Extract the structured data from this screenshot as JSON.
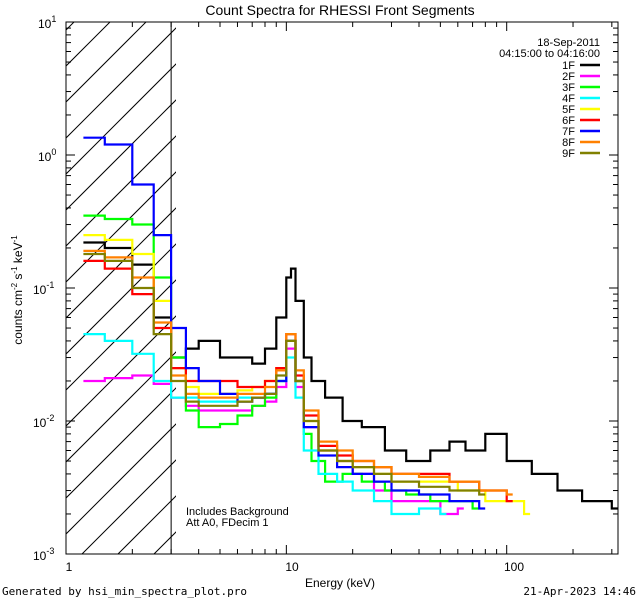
{
  "chart_data": {
    "type": "line",
    "title": "Count Spectra for RHESSI Front Segments",
    "xlabel": "Energy (keV)",
    "ylabel": "counts cm",
    "ylabel_parts": {
      "exp1": "-2",
      "s": " s",
      "exp2": "-1",
      "kev": " keV",
      "exp3": "-1"
    },
    "x_scale": "log",
    "y_scale": "log",
    "xlim": [
      1.0,
      320.0
    ],
    "ylim": [
      0.001,
      10.0
    ],
    "x_ticks": [
      {
        "value": 1,
        "label": "1"
      },
      {
        "value": 10,
        "label": "10"
      },
      {
        "value": 100,
        "label": "100"
      }
    ],
    "y_ticks": [
      {
        "value": 10,
        "label": "10",
        "exp": "1"
      },
      {
        "value": 1,
        "label": "10",
        "exp": "0"
      },
      {
        "value": 0.1,
        "label": "10",
        "exp": "-1"
      },
      {
        "value": 0.01,
        "label": "10",
        "exp": "-2"
      },
      {
        "value": 0.001,
        "label": "10",
        "exp": "-3"
      }
    ],
    "hatched_region": {
      "x_from": 1.0,
      "x_to": 3.0
    },
    "legend": {
      "date": "18-Sep-2011",
      "time_range": "04:15:00 to 04:16:00",
      "placement": "top-right"
    },
    "annotations": [
      "Includes Background",
      "Att A0, FDecim 1"
    ],
    "series": [
      {
        "name": "1F",
        "color": "#000000",
        "points": [
          [
            1.2,
            0.22
          ],
          [
            1.5,
            0.2
          ],
          [
            2.0,
            0.15
          ],
          [
            2.5,
            0.06
          ],
          [
            3.0,
            0.03
          ],
          [
            3.5,
            0.035
          ],
          [
            4.0,
            0.04
          ],
          [
            5.0,
            0.03
          ],
          [
            6.0,
            0.03
          ],
          [
            7.0,
            0.027
          ],
          [
            8.0,
            0.035
          ],
          [
            9.0,
            0.06
          ],
          [
            10.0,
            0.12
          ],
          [
            10.5,
            0.14
          ],
          [
            11.0,
            0.08
          ],
          [
            12.0,
            0.03
          ],
          [
            13.0,
            0.02
          ],
          [
            15.0,
            0.015
          ],
          [
            18.0,
            0.01
          ],
          [
            22.0,
            0.009
          ],
          [
            28.0,
            0.006
          ],
          [
            35.0,
            0.005
          ],
          [
            45.0,
            0.006
          ],
          [
            55.0,
            0.007
          ],
          [
            65.0,
            0.006
          ],
          [
            80.0,
            0.008
          ],
          [
            100.0,
            0.005
          ],
          [
            130.0,
            0.004
          ],
          [
            170.0,
            0.003
          ],
          [
            220.0,
            0.0025
          ],
          [
            300.0,
            0.0022
          ]
        ]
      },
      {
        "name": "2F",
        "color": "#ff00ff",
        "points": [
          [
            1.2,
            0.02
          ],
          [
            1.5,
            0.021
          ],
          [
            2.0,
            0.022
          ],
          [
            2.5,
            0.019
          ],
          [
            3.0,
            0.015
          ],
          [
            3.5,
            0.013
          ],
          [
            4.0,
            0.012
          ],
          [
            5.0,
            0.012
          ],
          [
            6.0,
            0.012
          ],
          [
            7.0,
            0.013
          ],
          [
            8.0,
            0.014
          ],
          [
            9.0,
            0.018
          ],
          [
            10.0,
            0.035
          ],
          [
            11.0,
            0.018
          ],
          [
            12.0,
            0.009
          ],
          [
            14.0,
            0.006
          ],
          [
            17.0,
            0.005
          ],
          [
            20.0,
            0.004
          ],
          [
            25.0,
            0.003
          ],
          [
            30.0,
            0.0025
          ],
          [
            40.0,
            0.0025
          ],
          [
            50.0,
            0.002
          ],
          [
            60.0,
            0.0022
          ]
        ]
      },
      {
        "name": "3F",
        "color": "#00ff00",
        "points": [
          [
            1.2,
            0.35
          ],
          [
            1.5,
            0.33
          ],
          [
            2.0,
            0.3
          ],
          [
            2.5,
            0.12
          ],
          [
            3.0,
            0.03
          ],
          [
            3.5,
            0.012
          ],
          [
            4.0,
            0.009
          ],
          [
            5.0,
            0.0095
          ],
          [
            6.0,
            0.011
          ],
          [
            7.0,
            0.013
          ],
          [
            8.0,
            0.015
          ],
          [
            9.0,
            0.02
          ],
          [
            10.0,
            0.04
          ],
          [
            11.0,
            0.02
          ],
          [
            12.0,
            0.008
          ],
          [
            13.0,
            0.005
          ],
          [
            15.0,
            0.0035
          ],
          [
            18.0,
            0.004
          ],
          [
            22.0,
            0.0035
          ],
          [
            28.0,
            0.003
          ],
          [
            35.0,
            0.0028
          ],
          [
            45.0,
            0.0025
          ],
          [
            55.0,
            0.0025
          ],
          [
            70.0,
            0.0022
          ]
        ]
      },
      {
        "name": "4F",
        "color": "#00ffff",
        "points": [
          [
            1.2,
            0.045
          ],
          [
            1.5,
            0.04
          ],
          [
            2.0,
            0.032
          ],
          [
            2.5,
            0.02
          ],
          [
            3.0,
            0.015
          ],
          [
            3.5,
            0.015
          ],
          [
            4.0,
            0.014
          ],
          [
            5.0,
            0.014
          ],
          [
            6.0,
            0.015
          ],
          [
            7.0,
            0.015
          ],
          [
            8.0,
            0.016
          ],
          [
            9.0,
            0.02
          ],
          [
            10.0,
            0.03
          ],
          [
            11.0,
            0.015
          ],
          [
            12.0,
            0.006
          ],
          [
            14.0,
            0.004
          ],
          [
            17.0,
            0.0035
          ],
          [
            20.0,
            0.003
          ],
          [
            25.0,
            0.0025
          ],
          [
            30.0,
            0.002
          ],
          [
            40.0,
            0.0022
          ],
          [
            50.0,
            0.002
          ]
        ]
      },
      {
        "name": "5F",
        "color": "#ffff00",
        "points": [
          [
            1.2,
            0.25
          ],
          [
            1.5,
            0.23
          ],
          [
            2.0,
            0.18
          ],
          [
            2.5,
            0.08
          ],
          [
            3.0,
            0.025
          ],
          [
            3.5,
            0.018
          ],
          [
            4.0,
            0.016
          ],
          [
            5.0,
            0.016
          ],
          [
            6.0,
            0.017
          ],
          [
            7.0,
            0.018
          ],
          [
            8.0,
            0.02
          ],
          [
            9.0,
            0.025
          ],
          [
            10.0,
            0.04
          ],
          [
            11.0,
            0.02
          ],
          [
            12.0,
            0.01
          ],
          [
            14.0,
            0.006
          ],
          [
            17.0,
            0.005
          ],
          [
            20.0,
            0.0045
          ],
          [
            25.0,
            0.004
          ],
          [
            30.0,
            0.0035
          ],
          [
            40.0,
            0.0035
          ],
          [
            60.0,
            0.003
          ],
          [
            80.0,
            0.0025
          ],
          [
            120.0,
            0.002
          ]
        ]
      },
      {
        "name": "6F",
        "color": "#ff0000",
        "points": [
          [
            1.2,
            0.16
          ],
          [
            1.5,
            0.14
          ],
          [
            2.0,
            0.09
          ],
          [
            2.5,
            0.05
          ],
          [
            3.0,
            0.025
          ],
          [
            3.5,
            0.02
          ],
          [
            4.0,
            0.02
          ],
          [
            5.0,
            0.02
          ],
          [
            6.0,
            0.018
          ],
          [
            7.0,
            0.018
          ],
          [
            8.0,
            0.02
          ],
          [
            9.0,
            0.025
          ],
          [
            10.0,
            0.045
          ],
          [
            11.0,
            0.022
          ],
          [
            12.0,
            0.011
          ],
          [
            14.0,
            0.0065
          ],
          [
            17.0,
            0.0055
          ],
          [
            20.0,
            0.005
          ],
          [
            25.0,
            0.0045
          ],
          [
            30.0,
            0.004
          ],
          [
            40.0,
            0.004
          ],
          [
            55.0,
            0.0035
          ],
          [
            75.0,
            0.003
          ],
          [
            100.0,
            0.0025
          ]
        ]
      },
      {
        "name": "7F",
        "color": "#0000ff",
        "points": [
          [
            1.2,
            1.35
          ],
          [
            1.5,
            1.2
          ],
          [
            2.0,
            0.6
          ],
          [
            2.5,
            0.25
          ],
          [
            3.0,
            0.05
          ],
          [
            3.5,
            0.025
          ],
          [
            4.0,
            0.02
          ],
          [
            5.0,
            0.016
          ],
          [
            6.0,
            0.014
          ],
          [
            7.0,
            0.015
          ],
          [
            8.0,
            0.016
          ],
          [
            9.0,
            0.02
          ],
          [
            10.0,
            0.04
          ],
          [
            11.0,
            0.02
          ],
          [
            12.0,
            0.009
          ],
          [
            14.0,
            0.0055
          ],
          [
            17.0,
            0.0045
          ],
          [
            20.0,
            0.004
          ],
          [
            25.0,
            0.0035
          ],
          [
            30.0,
            0.003
          ],
          [
            40.0,
            0.0028
          ],
          [
            55.0,
            0.0025
          ],
          [
            75.0,
            0.0022
          ]
        ]
      },
      {
        "name": "8F",
        "color": "#ff8000",
        "points": [
          [
            1.2,
            0.19
          ],
          [
            1.5,
            0.17
          ],
          [
            2.0,
            0.12
          ],
          [
            2.5,
            0.055
          ],
          [
            3.0,
            0.022
          ],
          [
            3.5,
            0.016
          ],
          [
            4.0,
            0.015
          ],
          [
            5.0,
            0.015
          ],
          [
            6.0,
            0.016
          ],
          [
            7.0,
            0.016
          ],
          [
            8.0,
            0.018
          ],
          [
            9.0,
            0.024
          ],
          [
            10.0,
            0.045
          ],
          [
            11.0,
            0.024
          ],
          [
            12.0,
            0.012
          ],
          [
            14.0,
            0.007
          ],
          [
            17.0,
            0.006
          ],
          [
            20.0,
            0.005
          ],
          [
            25.0,
            0.0045
          ],
          [
            30.0,
            0.004
          ],
          [
            40.0,
            0.0038
          ],
          [
            55.0,
            0.0035
          ],
          [
            75.0,
            0.003
          ],
          [
            100.0,
            0.0028
          ]
        ]
      },
      {
        "name": "9F",
        "color": "#808000",
        "points": [
          [
            1.2,
            0.18
          ],
          [
            1.5,
            0.16
          ],
          [
            2.0,
            0.1
          ],
          [
            2.5,
            0.045
          ],
          [
            3.0,
            0.02
          ],
          [
            3.5,
            0.014
          ],
          [
            4.0,
            0.013
          ],
          [
            5.0,
            0.013
          ],
          [
            6.0,
            0.014
          ],
          [
            7.0,
            0.015
          ],
          [
            8.0,
            0.016
          ],
          [
            9.0,
            0.022
          ],
          [
            10.0,
            0.04
          ],
          [
            11.0,
            0.02
          ],
          [
            12.0,
            0.01
          ],
          [
            14.0,
            0.006
          ],
          [
            17.0,
            0.005
          ],
          [
            20.0,
            0.0045
          ],
          [
            25.0,
            0.004
          ],
          [
            30.0,
            0.0035
          ],
          [
            40.0,
            0.0032
          ],
          [
            55.0,
            0.003
          ],
          [
            75.0,
            0.0028
          ]
        ]
      }
    ]
  },
  "footer": {
    "generator": "Generated by hsi_min_spectra_plot.pro",
    "timestamp": "21-Apr-2023 14:46"
  }
}
